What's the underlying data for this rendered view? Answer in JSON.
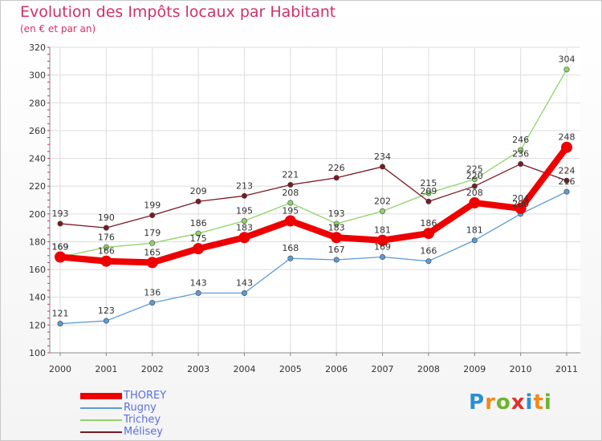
{
  "title": "Evolution des Impôts locaux par Habitant",
  "subtitle": "(en € et par an)",
  "logo": [
    "P",
    "r",
    "o",
    "x",
    "i",
    "t",
    "i"
  ],
  "logo_colors": [
    "#2a8fd4",
    "#f08a1c",
    "#6ab52e",
    "#e0302a",
    "#2a8fd4",
    "#f08a1c",
    "#6ab52e"
  ],
  "chart_data": {
    "type": "line",
    "title": "Evolution des Impôts locaux par Habitant",
    "subtitle": "(en € et par an)",
    "xlabel": "",
    "ylabel": "",
    "ylim": [
      100,
      320
    ],
    "yticks": [
      "100",
      "120",
      "140",
      "160",
      "180",
      "200",
      "220",
      "240",
      "260",
      "280",
      "300",
      "320"
    ],
    "categories": [
      "2000",
      "2001",
      "2002",
      "2003",
      "2004",
      "2005",
      "2006",
      "2007",
      "2008",
      "2009",
      "2010",
      "2011"
    ],
    "grid": true,
    "series": [
      {
        "name": "THOREY",
        "color": "#ee0000",
        "values": [
          169,
          166,
          165,
          175,
          183,
          195,
          183,
          181,
          186,
          208,
          204,
          248
        ],
        "labels": [
          "169",
          "166",
          "165",
          "175",
          "183",
          "195",
          "183",
          "181",
          "186",
          "208",
          "204",
          "248"
        ]
      },
      {
        "name": "Rugny",
        "color": "#5b9bd5",
        "values": [
          121,
          123,
          136,
          143,
          143,
          168,
          167,
          169,
          166,
          181,
          200,
          216
        ],
        "labels": [
          "121",
          "123",
          "136",
          "143",
          "143",
          "168",
          "167",
          "169",
          "166",
          "181",
          "200",
          "216"
        ]
      },
      {
        "name": "Trichey",
        "color": "#8fd468",
        "values": [
          169,
          176,
          179,
          186,
          195,
          208,
          193,
          202,
          215,
          225,
          246,
          304
        ],
        "labels": [
          "169",
          "176",
          "179",
          "186",
          "195",
          "208",
          "193",
          "202",
          "215",
          "225",
          "246",
          "304"
        ]
      },
      {
        "name": "Mélisey",
        "color": "#7a1a22",
        "values": [
          193,
          190,
          199,
          209,
          213,
          221,
          226,
          234,
          209,
          220,
          236,
          224
        ],
        "labels": [
          "193",
          "190",
          "199",
          "209",
          "213",
          "221",
          "226",
          "234",
          "209",
          "220",
          "236",
          "224"
        ]
      }
    ]
  }
}
